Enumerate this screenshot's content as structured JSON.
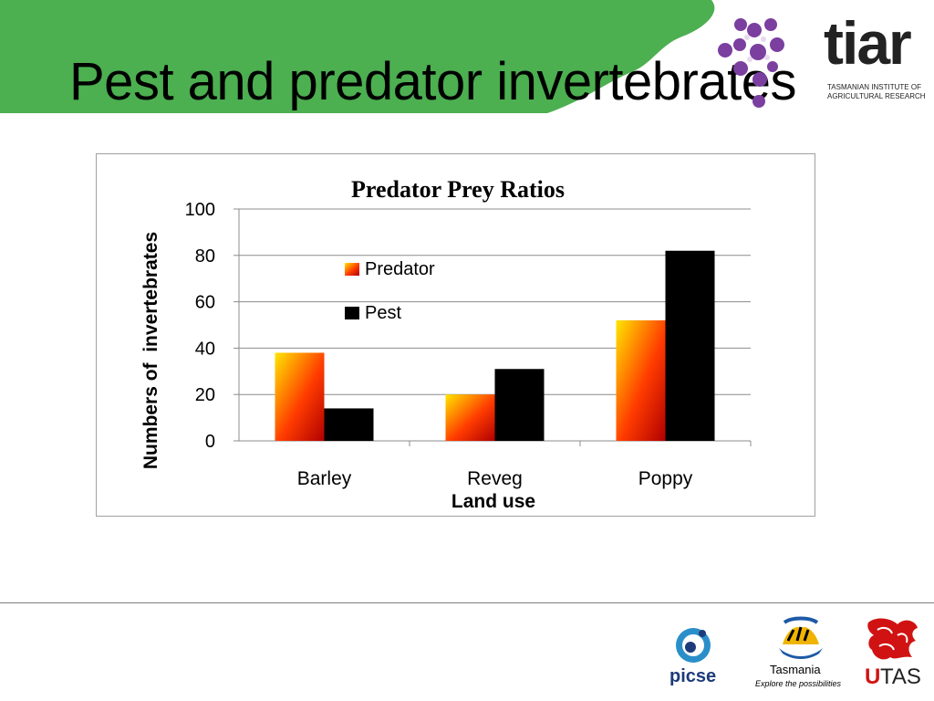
{
  "slide": {
    "title": "Pest and predator invertebrates",
    "banner_color": "#4caf50"
  },
  "logos": {
    "tiar": {
      "wordmark": "tiar",
      "line1": "TASMANIAN INSTITUTE OF",
      "line2": "AGRICULTURAL RESEARCH",
      "icon": "molecule-dots-icon"
    },
    "picse": {
      "text": "picse",
      "icon": "picse-circle-icon"
    },
    "tasmania": {
      "name": "Tasmania",
      "tagline": "Explore the possibilities",
      "icon": "tasmania-tiger-icon"
    },
    "utas": {
      "u": "U",
      "tas": "TAS",
      "icon": "utas-lion-crest-icon"
    }
  },
  "chart_data": {
    "type": "bar",
    "title": "Predator Prey Ratios",
    "xlabel": "Land use",
    "ylabel": "Numbers of  invertebrates",
    "categories": [
      "Barley",
      "Reveg",
      "Poppy"
    ],
    "series": [
      {
        "name": "Predator",
        "values": [
          38,
          20,
          52
        ],
        "color": "#ff6600"
      },
      {
        "name": "Pest",
        "values": [
          14,
          31,
          82
        ],
        "color": "#000000"
      }
    ],
    "ylim": [
      0,
      100
    ],
    "yticks": [
      "0",
      "20",
      "40",
      "60",
      "80",
      "100"
    ],
    "grid": true,
    "legend_position": "top-left"
  }
}
